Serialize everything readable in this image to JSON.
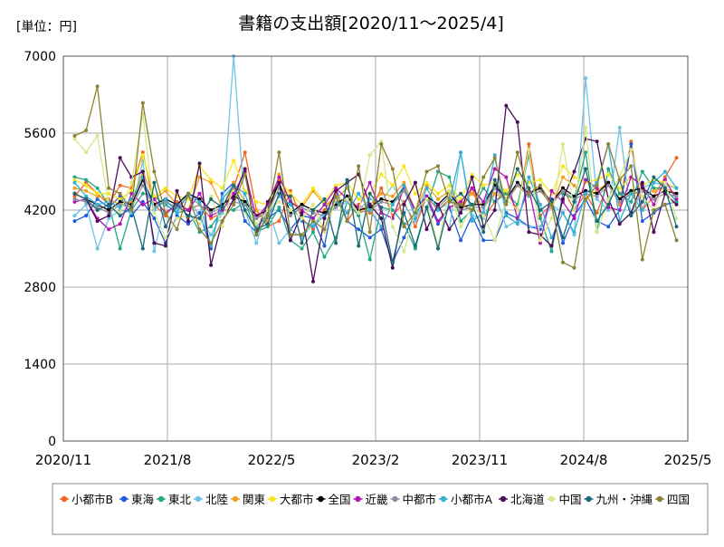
{
  "chart_data": {
    "type": "line",
    "title": "書籍の支出額[2020/11～2025/4]",
    "unit_label": "[単位：円]",
    "xlabel": "",
    "ylabel": "",
    "ylim": [
      0,
      7000
    ],
    "yticks": [
      0,
      1400,
      2800,
      4200,
      5600,
      7000
    ],
    "xticks": [
      "2020/11",
      "2021/8",
      "2022/5",
      "2023/2",
      "2023/11",
      "2024/8",
      "2025/5"
    ],
    "grid": true,
    "legend_placement": "bottom",
    "months": [
      "2020/11",
      "2020/12",
      "2021/1",
      "2021/2",
      "2021/3",
      "2021/4",
      "2021/5",
      "2021/6",
      "2021/7",
      "2021/8",
      "2021/9",
      "2021/10",
      "2021/11",
      "2021/12",
      "2022/1",
      "2022/2",
      "2022/3",
      "2022/4",
      "2022/5",
      "2022/6",
      "2022/7",
      "2022/8",
      "2022/9",
      "2022/10",
      "2022/11",
      "2022/12",
      "2023/1",
      "2023/2",
      "2023/3",
      "2023/4",
      "2023/5",
      "2023/6",
      "2023/7",
      "2023/8",
      "2023/9",
      "2023/10",
      "2023/11",
      "2023/12",
      "2024/1",
      "2024/2",
      "2024/3",
      "2024/4",
      "2024/5",
      "2024/6",
      "2024/7",
      "2024/8",
      "2024/9",
      "2024/10",
      "2024/11",
      "2024/12",
      "2025/1",
      "2025/2",
      "2025/3",
      "2025/4"
    ],
    "series": [
      {
        "name": "小都市B",
        "color": "#f26522",
        "values": [
          4450,
          4700,
          4500,
          4300,
          4650,
          4600,
          5250,
          4300,
          4100,
          4350,
          4200,
          4300,
          4050,
          4150,
          4600,
          5250,
          4200,
          3900,
          4000,
          4550,
          4050,
          3850,
          4200,
          4500,
          4000,
          4300,
          4150,
          4600,
          4100,
          4350,
          3900,
          4450,
          4200,
          4400,
          4150,
          4600,
          4050,
          4350,
          4550,
          4200,
          5400,
          4100,
          4300,
          4600,
          4200,
          4500,
          4150,
          4700,
          4300,
          5450,
          4200,
          4450,
          4800,
          5150
        ]
      },
      {
        "name": "東海",
        "color": "#1f5cdb",
        "values": [
          4000,
          4100,
          4400,
          4250,
          4450,
          4100,
          4350,
          4050,
          3600,
          4100,
          3950,
          4150,
          3500,
          4500,
          4700,
          4000,
          3800,
          4050,
          4200,
          3850,
          4100,
          4050,
          3550,
          4600,
          4000,
          3850,
          3700,
          3850,
          3250,
          3700,
          4150,
          4400,
          3950,
          4250,
          3650,
          4100,
          3650,
          3650,
          4150,
          4050,
          3900,
          3850,
          4400,
          3600,
          4100,
          4400,
          4000,
          3900,
          4200,
          5400,
          4000,
          4150,
          4300,
          4350
        ]
      },
      {
        "name": "東北",
        "color": "#22a884",
        "values": [
          4800,
          4750,
          4600,
          4300,
          3500,
          4200,
          4500,
          4450,
          4300,
          4150,
          4200,
          3800,
          3900,
          4200,
          4200,
          4350,
          3800,
          3900,
          4250,
          3650,
          3500,
          3800,
          3350,
          3700,
          4350,
          4100,
          3300,
          4250,
          4200,
          3950,
          3500,
          4250,
          4900,
          4800,
          4000,
          4200,
          4600,
          4350,
          4500,
          4300,
          5200,
          4050,
          3450,
          4500,
          4400,
          5250,
          3800,
          4950,
          4500,
          4350,
          4900,
          4600,
          4600,
          4350
        ]
      },
      {
        "name": "北陸",
        "color": "#6fc3e6",
        "values": [
          4100,
          4300,
          3500,
          4050,
          4200,
          4150,
          5100,
          3450,
          4350,
          4200,
          4500,
          4050,
          3750,
          4150,
          7000,
          4200,
          3600,
          4250,
          3600,
          3850,
          3700,
          3950,
          4150,
          4250,
          4350,
          4200,
          4400,
          4350,
          4650,
          4300,
          4000,
          4450,
          4300,
          3850,
          5250,
          4100,
          4050,
          4500,
          3900,
          4000,
          3900,
          3900,
          4300,
          4150,
          3750,
          6600,
          4400,
          4200,
          5700,
          4100,
          4600,
          4700,
          4650,
          4600
        ]
      },
      {
        "name": "関東",
        "color": "#f0a020",
        "values": [
          4600,
          4550,
          4450,
          4400,
          4300,
          4350,
          4900,
          4400,
          4550,
          4300,
          4200,
          4800,
          4700,
          4250,
          4700,
          4350,
          4200,
          4000,
          4850,
          4350,
          4250,
          4550,
          4300,
          4400,
          4600,
          4150,
          4300,
          4500,
          4450,
          4700,
          4200,
          4650,
          4400,
          4550,
          4300,
          4500,
          4250,
          4500,
          4400,
          4650,
          4500,
          4600,
          4250,
          4800,
          4650,
          4400,
          4550,
          4700,
          4300,
          4550,
          4450,
          4550,
          4600,
          4500
        ]
      },
      {
        "name": "大都市",
        "color": "#f6e71e",
        "values": [
          4750,
          4650,
          4500,
          4500,
          4400,
          4550,
          5200,
          4450,
          4600,
          4450,
          4400,
          5000,
          4750,
          4600,
          5100,
          4550,
          4350,
          4300,
          4750,
          4500,
          4300,
          4600,
          4350,
          4650,
          4700,
          4400,
          4500,
          4850,
          4650,
          5000,
          4500,
          4700,
          4500,
          4650,
          4400,
          4850,
          4650,
          4700,
          4550,
          4850,
          4700,
          4750,
          4500,
          5000,
          4800,
          4700,
          4750,
          4850,
          4600,
          4800,
          4650,
          4750,
          4700,
          4600
        ]
      },
      {
        "name": "全国",
        "color": "#000000",
        "values": [
          4500,
          4400,
          4300,
          4200,
          4350,
          4300,
          4750,
          4300,
          4400,
          4300,
          4500,
          4400,
          4200,
          4300,
          4450,
          4350,
          4100,
          4200,
          4700,
          4150,
          4300,
          4200,
          4150,
          4300,
          4450,
          4200,
          4250,
          4400,
          4350,
          4600,
          4200,
          4450,
          4300,
          4500,
          4250,
          4300,
          4300,
          4650,
          4400,
          4700,
          4500,
          4600,
          4350,
          4600,
          4450,
          4550,
          4500,
          4700,
          4400,
          4550,
          4600,
          4450,
          4550,
          4500
        ]
      },
      {
        "name": "近畿",
        "color": "#b314b3",
        "values": [
          4350,
          4400,
          4050,
          3850,
          3950,
          4500,
          4300,
          4400,
          4150,
          4300,
          4200,
          4500,
          4100,
          4200,
          4500,
          4900,
          4050,
          4300,
          4800,
          4350,
          4200,
          4050,
          4300,
          4600,
          4400,
          4250,
          4700,
          4150,
          4050,
          4600,
          4200,
          4450,
          4000,
          4250,
          4350,
          4600,
          4350,
          4950,
          4800,
          4050,
          4600,
          3600,
          4550,
          4350,
          4050,
          4750,
          4600,
          4250,
          4200,
          4800,
          4650,
          4300,
          4750,
          4400
        ]
      },
      {
        "name": "中都市",
        "color": "#8c8fa0",
        "values": [
          4400,
          4350,
          4250,
          4150,
          4300,
          4250,
          4650,
          4250,
          4350,
          4250,
          4450,
          4300,
          4150,
          4250,
          4350,
          4300,
          4050,
          4150,
          4600,
          4100,
          4250,
          4150,
          4100,
          4250,
          4400,
          4150,
          4200,
          4350,
          4300,
          4550,
          4150,
          4400,
          4250,
          4450,
          4200,
          4250,
          4250,
          4600,
          4350,
          4650,
          4450,
          4550,
          4300,
          4550,
          4400,
          4500,
          4450,
          4650,
          4350,
          4500,
          4550,
          4400,
          4500,
          4450
        ]
      },
      {
        "name": "小都市A",
        "color": "#33b0d8",
        "values": [
          4700,
          4450,
          4300,
          4350,
          4250,
          4400,
          4800,
          4200,
          4400,
          4150,
          4500,
          4350,
          3550,
          4400,
          4650,
          4500,
          3900,
          4100,
          4450,
          4300,
          4000,
          3900,
          4100,
          4350,
          4150,
          4500,
          4200,
          3900,
          4300,
          4650,
          4050,
          4600,
          4200,
          4350,
          5250,
          4000,
          4150,
          5200,
          4100,
          3950,
          4800,
          4300,
          3700,
          4150,
          3800,
          4500,
          4700,
          5400,
          4000,
          4500,
          4200,
          4700,
          4900,
          4600
        ]
      },
      {
        "name": "北海道",
        "color": "#4b0e5a",
        "values": [
          4500,
          4400,
          4000,
          4100,
          5150,
          4800,
          4900,
          3600,
          3550,
          4550,
          4000,
          5050,
          3200,
          4000,
          4400,
          4950,
          3750,
          4350,
          4700,
          3650,
          4150,
          2900,
          4050,
          4550,
          4700,
          4850,
          4300,
          4050,
          3150,
          4300,
          4700,
          3850,
          4300,
          3850,
          4150,
          4800,
          3900,
          4200,
          6100,
          5800,
          3800,
          3750,
          3550,
          4400,
          4900,
          5500,
          5450,
          4400,
          3950,
          4150,
          4700,
          3800,
          4500,
          4300
        ]
      },
      {
        "name": "中国",
        "color": "#d6e88a",
        "values": [
          5500,
          5250,
          5550,
          4300,
          4150,
          4700,
          5950,
          4150,
          3700,
          4050,
          4100,
          3950,
          4450,
          3900,
          4650,
          4150,
          3950,
          4200,
          4350,
          4200,
          4050,
          4300,
          3800,
          4400,
          4400,
          4150,
          5200,
          5450,
          3900,
          3450,
          4200,
          4400,
          3550,
          4550,
          3900,
          4250,
          4100,
          3650,
          4400,
          4200,
          5300,
          3650,
          4050,
          5400,
          4200,
          5700,
          3800,
          4400,
          4800,
          5300,
          4450,
          4200,
          4700,
          4050
        ]
      },
      {
        "name": "九州・沖縄",
        "color": "#1b6a78",
        "values": [
          4500,
          4400,
          4200,
          4300,
          4100,
          4250,
          3500,
          4700,
          3900,
          4300,
          4100,
          4050,
          4400,
          4250,
          4650,
          4200,
          3850,
          3950,
          4500,
          4450,
          3600,
          4200,
          4400,
          3600,
          4750,
          3550,
          4500,
          4250,
          3250,
          4150,
          3550,
          4250,
          3500,
          4350,
          4500,
          4300,
          3800,
          4750,
          4350,
          4950,
          4600,
          4200,
          4350,
          3700,
          4350,
          4950,
          4000,
          4300,
          4750,
          4100,
          4350,
          4800,
          4600,
          3900
        ]
      },
      {
        "name": "四国",
        "color": "#8c8433",
        "values": [
          5550,
          5650,
          6450,
          4600,
          4500,
          4200,
          6150,
          4900,
          4150,
          3850,
          4500,
          3850,
          3600,
          4000,
          4300,
          4850,
          3750,
          4100,
          5250,
          3750,
          3750,
          4000,
          3850,
          4450,
          4000,
          5000,
          3800,
          5400,
          4950,
          3900,
          4150,
          4900,
          5000,
          4350,
          4300,
          4200,
          4800,
          5150,
          4300,
          5250,
          4500,
          4650,
          4300,
          3250,
          3150,
          4400,
          4650,
          5400,
          4750,
          5000,
          3300,
          4200,
          4300,
          3650
        ]
      }
    ]
  }
}
